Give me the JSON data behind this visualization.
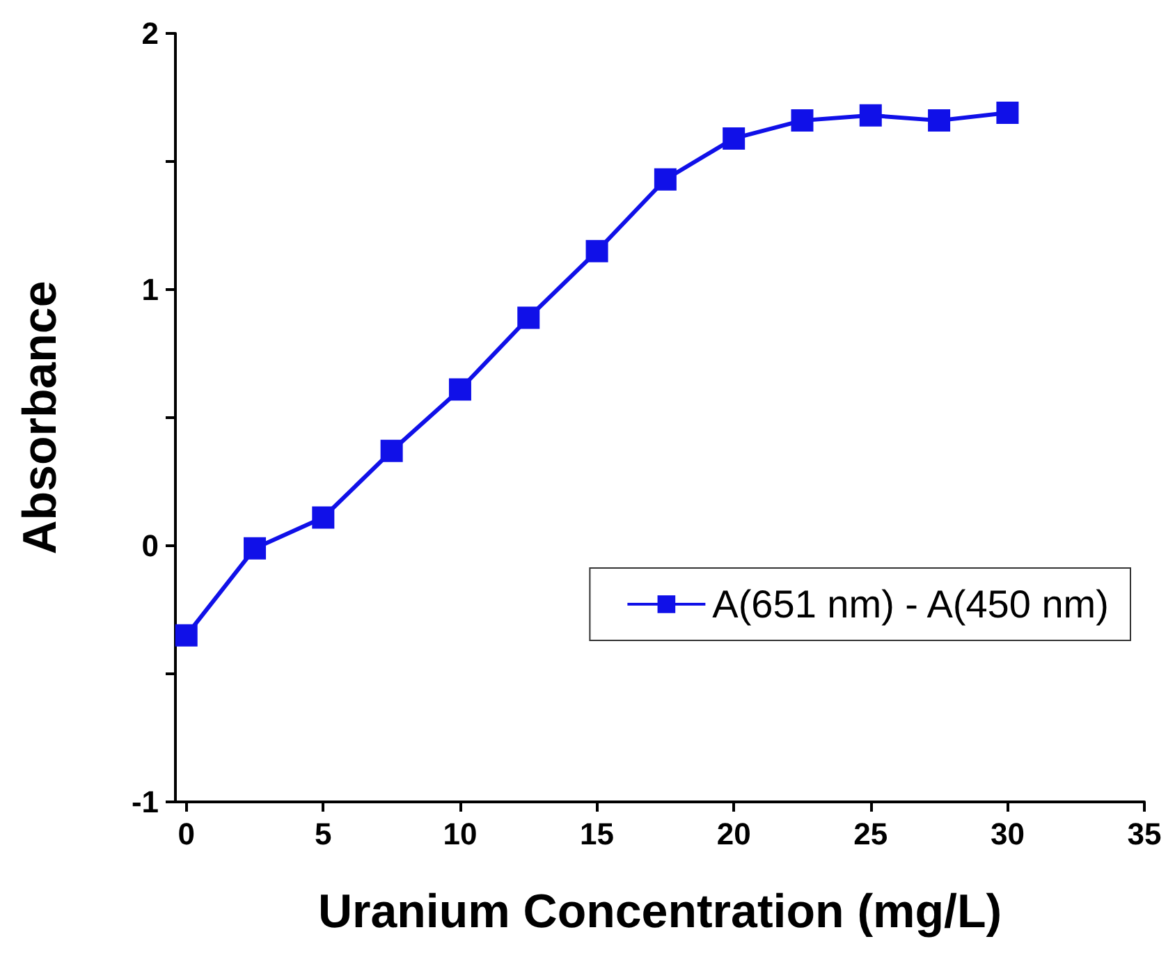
{
  "chart_data": {
    "type": "line",
    "xlabel": "Uranium Concentration (mg/L)",
    "ylabel": "Absorbance",
    "x": [
      0,
      2.5,
      5,
      7.5,
      10,
      12.5,
      15,
      17.5,
      20,
      22.5,
      25,
      27.5,
      30
    ],
    "series": [
      {
        "name": "A(651 nm) - A(450 nm)",
        "color": "#1010e8",
        "values": [
          -0.35,
          -0.01,
          0.11,
          0.37,
          0.61,
          0.89,
          1.15,
          1.43,
          1.59,
          1.66,
          1.68,
          1.66,
          1.69
        ]
      }
    ],
    "xlim": [
      -0.4,
      35
    ],
    "xticks": [
      0,
      5,
      10,
      15,
      20,
      25,
      30,
      35
    ],
    "ylim": [
      -1,
      2
    ],
    "yticks": [
      -1,
      {
        "value": -0.5,
        "label": null
      },
      0,
      {
        "value": 0.5,
        "label": null
      },
      1,
      {
        "value": 1.5,
        "label": null
      },
      2
    ],
    "grid": false,
    "legend": "right",
    "marker": "square",
    "line_style": "solid"
  }
}
